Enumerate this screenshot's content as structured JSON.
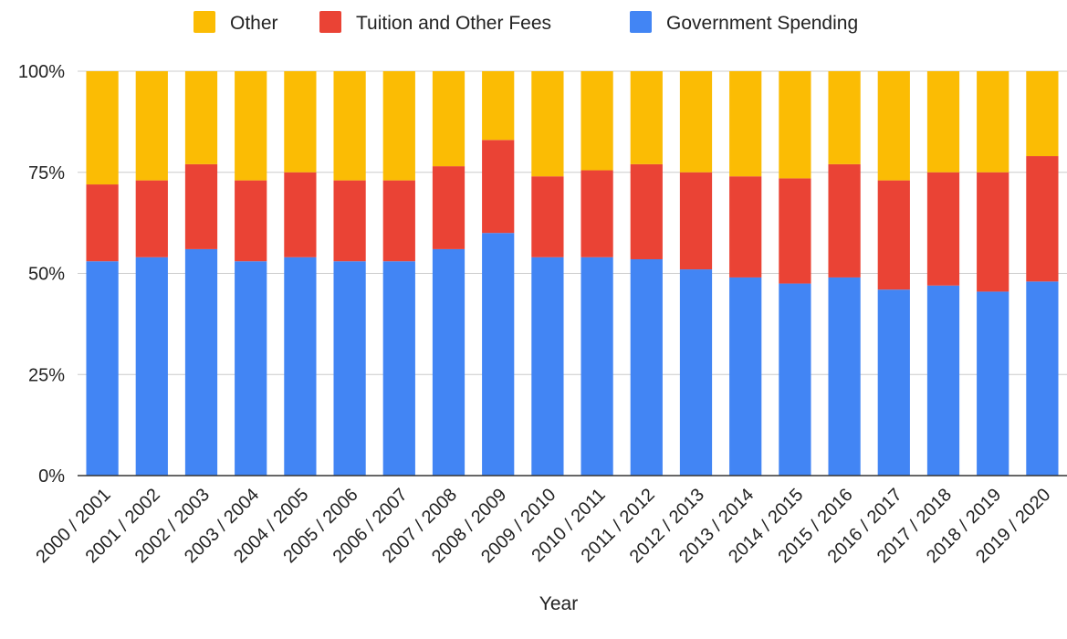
{
  "chart_data": {
    "type": "bar",
    "stacked": true,
    "percent_stacked": true,
    "title": "",
    "xlabel": "Year",
    "ylabel": "",
    "ylim": [
      0,
      100
    ],
    "yticks": [
      "0%",
      "25%",
      "50%",
      "75%",
      "100%"
    ],
    "ytick_values": [
      0,
      25,
      50,
      75,
      100
    ],
    "grid": true,
    "legend_position": "top",
    "categories": [
      "2000 / 2001",
      "2001 / 2002",
      "2002 / 2003",
      "2003 / 2004",
      "2004 / 2005",
      "2005 / 2006",
      "2006 / 2007",
      "2007 / 2008",
      "2008 / 2009",
      "2009 / 2010",
      "2010 / 2011",
      "2011 / 2012",
      "2012 / 2013",
      "2013 / 2014",
      "2014 / 2015",
      "2015 / 2016",
      "2016 / 2017",
      "2017 / 2018",
      "2018 / 2019",
      "2019 / 2020"
    ],
    "series": [
      {
        "name": "Government Spending",
        "color": "#4285f4",
        "values": [
          53,
          54,
          56,
          53,
          54,
          53,
          53,
          56,
          60,
          54,
          54,
          53.5,
          51,
          49,
          47.5,
          49,
          46,
          47,
          45.5,
          48
        ]
      },
      {
        "name": "Tuition and Other Fees",
        "color": "#ea4335",
        "values": [
          19,
          19,
          21,
          20,
          21,
          20,
          20,
          20.5,
          23,
          20,
          21.5,
          23.5,
          24,
          25,
          26,
          28,
          27,
          28,
          29.5,
          31
        ]
      },
      {
        "name": "Other",
        "color": "#fbbc04",
        "values": [
          28,
          27,
          23,
          27,
          25,
          27,
          27,
          23.5,
          17,
          26,
          24.5,
          23,
          25,
          26,
          26.5,
          23,
          27,
          25,
          25,
          21
        ]
      }
    ],
    "legend_order": [
      "Other",
      "Tuition and Other Fees",
      "Government Spending"
    ]
  }
}
